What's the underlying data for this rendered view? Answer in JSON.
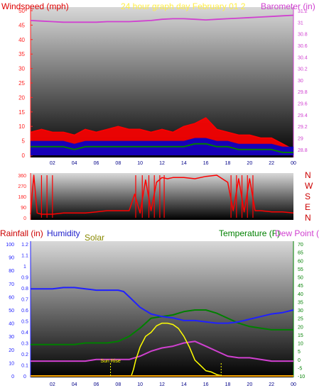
{
  "chart_data": [
    {
      "type": "line",
      "title": "24 hour graph day February 01 2",
      "ylabel_left": "Windspeed (mph)",
      "ylabel_right": "Barometer (in)",
      "x_ticks": [
        "02",
        "04",
        "06",
        "08",
        "10",
        "12",
        "14",
        "16",
        "18",
        "20",
        "22",
        "00"
      ],
      "x_range": [
        0,
        24
      ],
      "ylim_left": [
        0,
        50
      ],
      "ylim_right": [
        28.7,
        31.2
      ],
      "left_ticks": [
        "0",
        "5",
        "10",
        "15",
        "20",
        "25",
        "30",
        "35",
        "40",
        "45",
        "50"
      ],
      "right_ticks": [
        "28.8",
        "29",
        "29.2",
        "29.4",
        "29.6",
        "29.8",
        "30",
        "30.2",
        "30.4",
        "30.6",
        "30.8",
        "31",
        "31.2"
      ],
      "colors": {
        "wind_gust": "#ff0000",
        "wind_avg": "#008000",
        "wind_dark": "#0000cc",
        "barometer": "#d040d0"
      },
      "series": [
        {
          "name": "Barometer (in)",
          "axis": "right",
          "x": [
            0,
            1,
            2,
            3,
            4,
            5,
            6,
            7,
            8,
            9,
            10,
            11,
            12,
            13,
            14,
            15,
            16,
            17,
            18,
            19,
            20,
            21,
            22,
            23,
            24
          ],
          "values": [
            31.03,
            31.02,
            31.01,
            31.0,
            31.0,
            31.0,
            31.0,
            31.01,
            31.01,
            31.01,
            31.02,
            31.03,
            31.05,
            31.06,
            31.06,
            31.05,
            31.04,
            31.05,
            31.06,
            31.07,
            31.08,
            31.09,
            31.1,
            31.11,
            31.12
          ]
        },
        {
          "x": [
            0,
            1,
            2,
            3,
            4,
            5,
            6,
            7,
            8,
            9,
            10,
            11,
            12,
            13,
            14,
            15,
            16,
            17,
            18,
            19,
            20,
            21,
            22,
            23,
            24
          ],
          "values": [
            8,
            9,
            8,
            8,
            7,
            9,
            8,
            9,
            10,
            9,
            9,
            8,
            9,
            8,
            10,
            11,
            13,
            9,
            8,
            7,
            7,
            6,
            6,
            4,
            2
          ]
        },
        {
          "x": [
            0,
            1,
            2,
            3,
            4,
            5,
            6,
            7,
            8,
            9,
            10,
            11,
            12,
            13,
            14,
            15,
            16,
            17,
            18,
            19,
            20,
            21,
            22,
            23,
            24
          ],
          "values": [
            3,
            3,
            3,
            3,
            2,
            3,
            3,
            3,
            3,
            3,
            3,
            3,
            3,
            3,
            3,
            4,
            4,
            3,
            3,
            2,
            2,
            2,
            2,
            1,
            1
          ]
        }
      ]
    },
    {
      "type": "line",
      "right_labels": [
        "N",
        "W",
        "S",
        "E",
        "N"
      ],
      "x_range": [
        0,
        24
      ],
      "ylim": [
        0,
        360
      ],
      "left_ticks": [
        "0",
        "90",
        "180",
        "270",
        "360"
      ],
      "series": [
        {
          "x": [
            0,
            0.3,
            0.6,
            1,
            2,
            3,
            4,
            5,
            6,
            7,
            8,
            9,
            9.5,
            10,
            10.5,
            11,
            11.5,
            12,
            12.5,
            13,
            14,
            15,
            16,
            17,
            18,
            18.5,
            19,
            19.5,
            20,
            20.5,
            21,
            22,
            23,
            24
          ],
          "values": [
            30,
            360,
            40,
            30,
            30,
            40,
            40,
            40,
            50,
            60,
            60,
            60,
            200,
            40,
            320,
            60,
            300,
            340,
            330,
            340,
            340,
            330,
            350,
            360,
            300,
            60,
            330,
            50,
            330,
            60,
            60,
            50,
            50,
            40
          ]
        }
      ]
    },
    {
      "type": "line",
      "labels": {
        "rainfall": "Rainfall (in)",
        "humidity": "Humidity",
        "solar": "Solar",
        "temperature": "Temperature (F)",
        "dew_point": "Dew Point ("
      },
      "annotations": [
        {
          "text": "Sun Rise",
          "x": 7.3
        },
        {
          "text": "",
          "x": 17.4
        }
      ],
      "x_ticks": [
        "02",
        "04",
        "06",
        "08",
        "10",
        "12",
        "14",
        "16",
        "18",
        "20",
        "22",
        "00"
      ],
      "x_range": [
        0,
        24
      ],
      "ylim_left": [
        0,
        100
      ],
      "ylim_right": [
        -10,
        70
      ],
      "left_ticks": [
        "0",
        "10",
        "20",
        "30",
        "40",
        "50",
        "60",
        "70",
        "80",
        "90",
        "100"
      ],
      "rain_ticks": [
        "0",
        "0.1",
        "0.2",
        "0.3",
        "0.4",
        "0.5",
        "0.6",
        "0.7",
        "0.8",
        "0.9",
        "1",
        "1.1",
        "1.2"
      ],
      "right_ticks": [
        "-10",
        "-5",
        "0",
        "5",
        "10",
        "15",
        "20",
        "25",
        "30",
        "35",
        "40",
        "45",
        "50",
        "55",
        "60",
        "65",
        "70"
      ],
      "colors": {
        "humidity": "#2020ff",
        "temperature": "#008000",
        "dew_point": "#d040d0",
        "solar": "#ffff00",
        "rainfall": "#ffaa00"
      },
      "series": [
        {
          "name": "Humidity",
          "axis": "left",
          "x": [
            0,
            1,
            2,
            3,
            4,
            5,
            6,
            7,
            8,
            8.5,
            9,
            10,
            11,
            12,
            13,
            14,
            15,
            16,
            17,
            18,
            19,
            20,
            21,
            22,
            23,
            24
          ],
          "values": [
            66,
            66,
            66,
            67,
            67,
            66,
            65,
            65,
            65,
            64,
            60,
            52,
            47,
            45,
            44,
            42,
            42,
            41,
            40,
            40,
            41,
            43,
            45,
            47,
            48,
            50
          ]
        },
        {
          "name": "Temperature (F)",
          "axis": "right",
          "x": [
            0,
            1,
            2,
            3,
            4,
            5,
            6,
            7,
            8,
            9,
            10,
            11,
            12,
            13,
            14,
            15,
            16,
            17,
            18,
            19,
            20,
            21,
            22,
            23,
            24
          ],
          "values": [
            9,
            9,
            9,
            9,
            9,
            10,
            10,
            10,
            11,
            14,
            19,
            25,
            26,
            27,
            29,
            30,
            30,
            28,
            25,
            22,
            20,
            19,
            18,
            18,
            18
          ]
        },
        {
          "name": "Dew Point",
          "axis": "right",
          "x": [
            0,
            1,
            2,
            3,
            4,
            5,
            6,
            7,
            8,
            9,
            10,
            11,
            12,
            13,
            14,
            15,
            16,
            17,
            18,
            19,
            20,
            21,
            22,
            23,
            24
          ],
          "values": [
            -1,
            -1,
            -1,
            -1,
            -1,
            -1,
            0,
            0,
            0,
            0,
            2,
            5,
            7,
            8,
            10,
            11,
            8,
            5,
            2,
            1,
            1,
            0,
            -1,
            -1,
            -1
          ]
        },
        {
          "name": "Solar",
          "axis": "left",
          "x": [
            0,
            9.2,
            9.4,
            9.6,
            10,
            10.5,
            11,
            11.5,
            12,
            12.5,
            13,
            13.5,
            14,
            14.5,
            15,
            15.5,
            16,
            16.5,
            17,
            17.5,
            18,
            24
          ],
          "values": [
            0,
            0,
            5,
            12,
            22,
            30,
            33,
            38,
            40,
            40,
            39,
            36,
            30,
            22,
            12,
            8,
            4,
            3,
            1,
            0,
            0,
            0
          ]
        },
        {
          "name": "Rainfall (in)",
          "axis": "left",
          "x": [
            0,
            24
          ],
          "values": [
            0,
            0
          ]
        }
      ]
    }
  ]
}
